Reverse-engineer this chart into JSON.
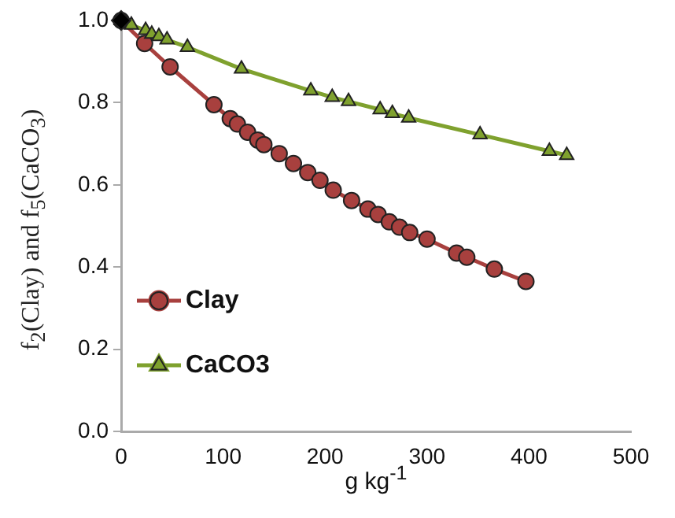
{
  "chart_data": {
    "type": "line",
    "xlabel": "g kg$^{-1}$",
    "ylabel": "f$_{2}$(Clay) and f$_{5}$(CaCO$_{3}$)",
    "xlim": [
      0,
      500
    ],
    "xticks": [
      0,
      100,
      200,
      300,
      400,
      500
    ],
    "ylim": [
      0,
      1.0
    ],
    "yticks": [
      {
        "value": 0,
        "label": "0.0"
      },
      {
        "value": 0.2,
        "label": "0.2"
      },
      {
        "value": 0.4,
        "label": "0.4"
      },
      {
        "value": 0.6,
        "label": "0.6"
      },
      {
        "value": 0.8,
        "label": "0.8"
      },
      {
        "value": 1,
        "label": "1.0"
      }
    ],
    "grid": false,
    "legend": "bottom left",
    "line_style": "solid",
    "series": [
      {
        "name": "Clay",
        "color": "#a8403e",
        "marker": "circle",
        "x": [
          0,
          23,
          48,
          91,
          107,
          114,
          124,
          134,
          140,
          155,
          169,
          183,
          195,
          208,
          226,
          242,
          252,
          263,
          273,
          283,
          300,
          329,
          339,
          366,
          397
        ],
        "values": [
          1.0,
          0.944,
          0.887,
          0.795,
          0.761,
          0.748,
          0.728,
          0.709,
          0.698,
          0.676,
          0.652,
          0.63,
          0.611,
          0.587,
          0.562,
          0.541,
          0.528,
          0.51,
          0.497,
          0.484,
          0.468,
          0.434,
          0.424,
          0.395,
          0.365
        ]
      },
      {
        "name": "CaCO3",
        "color": "#7fa12e",
        "marker": "triangle",
        "x": [
          0,
          10,
          24,
          30,
          37,
          45,
          65,
          118,
          186,
          207,
          223,
          254,
          266,
          282,
          352,
          420,
          437
        ],
        "values": [
          1.0,
          0.989,
          0.976,
          0.967,
          0.961,
          0.953,
          0.935,
          0.882,
          0.829,
          0.813,
          0.803,
          0.783,
          0.774,
          0.763,
          0.722,
          0.682,
          0.672
        ]
      },
      {
        "type": "scatter",
        "color": "#000000",
        "marker": "diamond",
        "x": [
          0
        ],
        "values": [
          1.0
        ]
      }
    ]
  }
}
